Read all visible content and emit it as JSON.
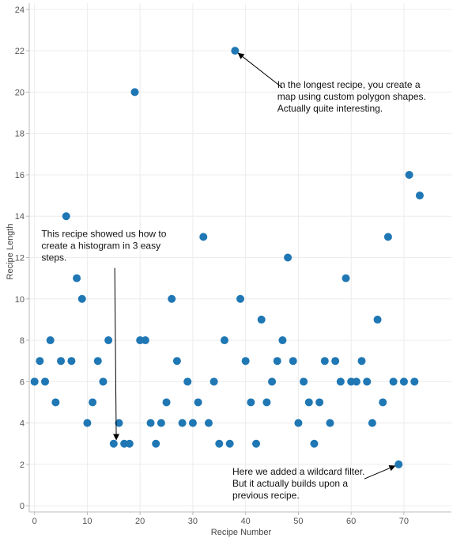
{
  "chart_data": {
    "type": "scatter",
    "xlabel": "Recipe Number",
    "ylabel": "Recipe Length",
    "xlim": [
      -1,
      79
    ],
    "ylim": [
      -0.3,
      24.3
    ],
    "xticks": [
      0,
      10,
      20,
      30,
      40,
      50,
      60,
      70
    ],
    "yticks": [
      0,
      2,
      4,
      6,
      8,
      10,
      12,
      14,
      16,
      18,
      20,
      22,
      24
    ],
    "grid": true,
    "point_color": "#1f77b4",
    "points": [
      {
        "x": 0,
        "y": 6
      },
      {
        "x": 1,
        "y": 7
      },
      {
        "x": 2,
        "y": 6
      },
      {
        "x": 3,
        "y": 8
      },
      {
        "x": 4,
        "y": 5
      },
      {
        "x": 5,
        "y": 7
      },
      {
        "x": 6,
        "y": 14
      },
      {
        "x": 7,
        "y": 7
      },
      {
        "x": 8,
        "y": 11
      },
      {
        "x": 9,
        "y": 10
      },
      {
        "x": 10,
        "y": 4
      },
      {
        "x": 11,
        "y": 5
      },
      {
        "x": 12,
        "y": 7
      },
      {
        "x": 13,
        "y": 6
      },
      {
        "x": 14,
        "y": 8
      },
      {
        "x": 15,
        "y": 3
      },
      {
        "x": 16,
        "y": 4
      },
      {
        "x": 17,
        "y": 3
      },
      {
        "x": 18,
        "y": 3
      },
      {
        "x": 19,
        "y": 20
      },
      {
        "x": 20,
        "y": 8
      },
      {
        "x": 21,
        "y": 8
      },
      {
        "x": 22,
        "y": 4
      },
      {
        "x": 23,
        "y": 3
      },
      {
        "x": 24,
        "y": 4
      },
      {
        "x": 25,
        "y": 5
      },
      {
        "x": 26,
        "y": 10
      },
      {
        "x": 27,
        "y": 7
      },
      {
        "x": 28,
        "y": 4
      },
      {
        "x": 29,
        "y": 6
      },
      {
        "x": 30,
        "y": 4
      },
      {
        "x": 31,
        "y": 5
      },
      {
        "x": 32,
        "y": 13
      },
      {
        "x": 33,
        "y": 4
      },
      {
        "x": 34,
        "y": 6
      },
      {
        "x": 35,
        "y": 3
      },
      {
        "x": 36,
        "y": 8
      },
      {
        "x": 37,
        "y": 3
      },
      {
        "x": 38,
        "y": 22
      },
      {
        "x": 39,
        "y": 10
      },
      {
        "x": 40,
        "y": 7
      },
      {
        "x": 41,
        "y": 5
      },
      {
        "x": 42,
        "y": 3
      },
      {
        "x": 43,
        "y": 9
      },
      {
        "x": 44,
        "y": 5
      },
      {
        "x": 45,
        "y": 6
      },
      {
        "x": 46,
        "y": 7
      },
      {
        "x": 47,
        "y": 8
      },
      {
        "x": 48,
        "y": 12
      },
      {
        "x": 49,
        "y": 7
      },
      {
        "x": 50,
        "y": 4
      },
      {
        "x": 51,
        "y": 6
      },
      {
        "x": 52,
        "y": 5
      },
      {
        "x": 53,
        "y": 3
      },
      {
        "x": 54,
        "y": 5
      },
      {
        "x": 55,
        "y": 7
      },
      {
        "x": 56,
        "y": 4
      },
      {
        "x": 57,
        "y": 7
      },
      {
        "x": 58,
        "y": 6
      },
      {
        "x": 59,
        "y": 11
      },
      {
        "x": 60,
        "y": 6
      },
      {
        "x": 61,
        "y": 6
      },
      {
        "x": 62,
        "y": 7
      },
      {
        "x": 63,
        "y": 6
      },
      {
        "x": 64,
        "y": 4
      },
      {
        "x": 65,
        "y": 9
      },
      {
        "x": 66,
        "y": 5
      },
      {
        "x": 67,
        "y": 13
      },
      {
        "x": 68,
        "y": 6
      },
      {
        "x": 69,
        "y": 2
      },
      {
        "x": 70,
        "y": 6
      },
      {
        "x": 71,
        "y": 16
      },
      {
        "x": 72,
        "y": 6
      },
      {
        "x": 73,
        "y": 15
      }
    ],
    "annotations": [
      {
        "lines": [
          "In the longest recipe, you create a",
          "map using custom polygon shapes.",
          "Actually quite interesting."
        ],
        "x": 46,
        "y": 20.2,
        "target_x": 38,
        "target_y": 22,
        "arrow_from_x": 47,
        "arrow_from_y": 20.2
      },
      {
        "lines": [
          "This recipe showed us how to",
          "create a histogram in 3 easy",
          "steps."
        ],
        "x": 1.3,
        "y": 13,
        "target_x": 15.5,
        "target_y": 3,
        "arrow_from_x": 15.2,
        "arrow_from_y": 11.5
      },
      {
        "lines": [
          "Here we added a wildcard filter.",
          "But it actually builds upon a",
          "previous recipe."
        ],
        "x": 37.5,
        "y": 1.5,
        "target_x": 69,
        "target_y": 2,
        "arrow_from_x": 62.5,
        "arrow_from_y": 1.3
      }
    ]
  }
}
